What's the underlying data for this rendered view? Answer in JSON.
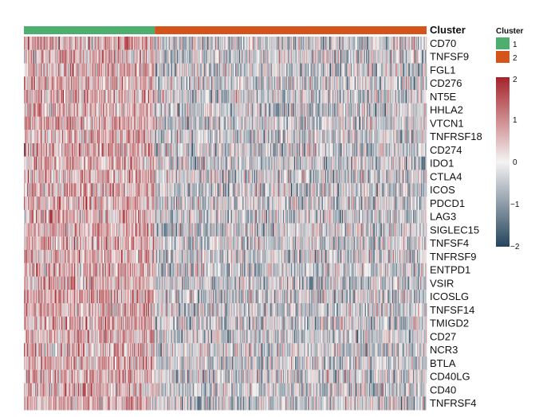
{
  "chart_data": {
    "type": "heatmap",
    "annotation_title": "Cluster",
    "rows": [
      "CD70",
      "TNFSF9",
      "FGL1",
      "CD276",
      "NT5E",
      "HHLA2",
      "VTCN1",
      "TNFRSF18",
      "CD274",
      "IDO1",
      "CTLA4",
      "ICOS",
      "PDCD1",
      "LAG3",
      "SIGLEC15",
      "TNFSF4",
      "TNFRSF9",
      "ENTPD1",
      "VSIR",
      "ICOSLG",
      "TNFSF14",
      "TMIGD2",
      "CD27",
      "NCR3",
      "BTLA",
      "CD40LG",
      "CD40",
      "TNFRSF4"
    ],
    "clusters": [
      {
        "name": "1",
        "color": "#4caf6e",
        "fraction": 0.325
      },
      {
        "name": "2",
        "color": "#d4541c",
        "fraction": 0.675
      }
    ],
    "legend": {
      "cluster_title": "Cluster",
      "cluster_items": [
        "1",
        "2"
      ],
      "scale_ticks": [
        "2",
        "1",
        "0",
        "−1",
        "−2"
      ],
      "scale_range": [
        -2,
        2
      ],
      "colors": {
        "high": "#a5232a",
        "mid": "#f5f3f3",
        "low": "#24445c"
      }
    }
  }
}
